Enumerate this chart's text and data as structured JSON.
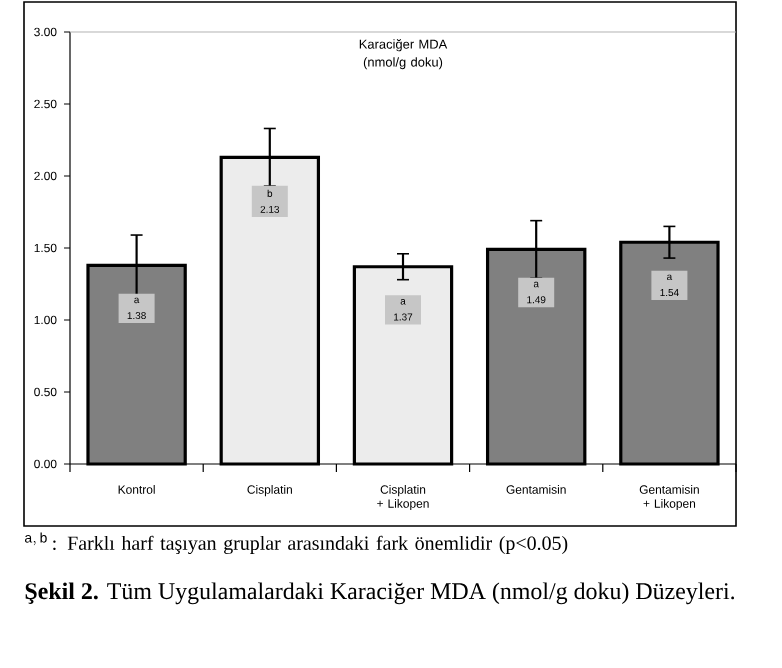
{
  "chart_data": {
    "type": "bar",
    "title": "Karaciğer MDA (nmol/g doku)",
    "categories": [
      "Kontrol",
      "Cisplatin",
      "Cisplatin + Likopen",
      "Gentamisin",
      "Gentamisin + Likopen"
    ],
    "values": [
      1.38,
      2.13,
      1.37,
      1.49,
      1.54
    ],
    "errors": [
      0.21,
      0.2,
      0.09,
      0.2,
      0.11
    ],
    "colors": [
      "#808080",
      "#ececec",
      "#ececec",
      "#808080",
      "#808080"
    ],
    "value_labels": [
      "a 1.38",
      "b 2.13",
      "a 1.37",
      "a 1.49",
      "a 1.54"
    ],
    "ylim": [
      0,
      3
    ],
    "yticks": [
      {
        "value": 0,
        "label": "0.00"
      },
      {
        "value": 0.5,
        "label": "0.50"
      },
      {
        "value": 1,
        "label": "1.00"
      },
      {
        "value": 1.5,
        "label": "1.50"
      },
      {
        "value": 2,
        "label": "2.00"
      },
      {
        "value": 2.5,
        "label": "2.50"
      },
      {
        "value": 3,
        "label": "3.00"
      }
    ],
    "annotations": [
      "^{\\mathrm{a,\\,b}}",
      ": Farklı harf taşıyan gruplar arasındaki fark önemlidir (p<0.05)",
      "**Şekil 2.** Tüm Uygulamalardaki Karaciğer MDA (nmol/g doku) Düzeyleri."
    ]
  }
}
